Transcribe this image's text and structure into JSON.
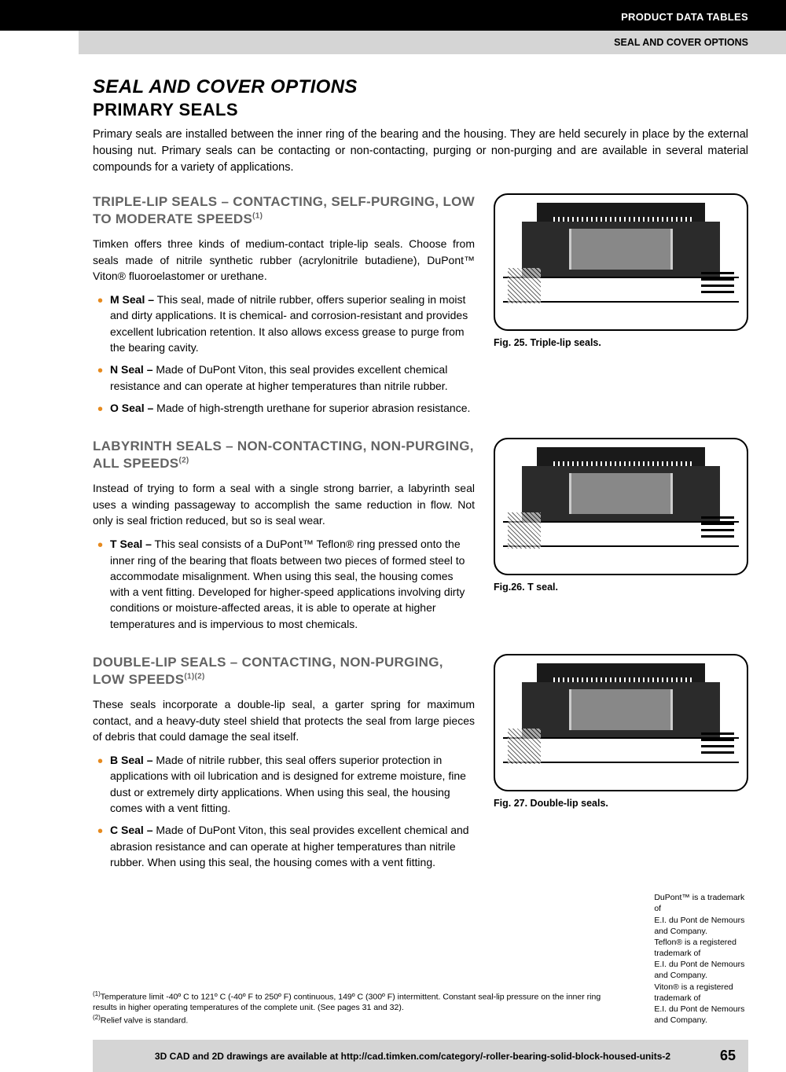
{
  "header": {
    "black": "PRODUCT DATA TABLES",
    "gray": "SEAL AND COVER OPTIONS"
  },
  "title": "SEAL AND COVER OPTIONS",
  "subtitle": "PRIMARY SEALS",
  "intro": "Primary seals are installed between the inner ring of the bearing and the housing. They are held securely in place by the external housing nut. Primary seals can be contacting or non-contacting, purging or non-purging and are available in several material compounds for a variety of applications.",
  "sections": [
    {
      "heading": "TRIPLE-LIP SEALS – CONTACTING, SELF-PURGING, LOW TO MODERATE SPEEDS",
      "sup": "(1)",
      "body": "Timken offers three kinds of medium-contact triple-lip seals. Choose from seals made of nitrile synthetic rubber (acrylonitrile butadiene), DuPont™ Viton® fluoroelastomer or urethane.",
      "items": [
        "<b>M Seal –</b> This seal, made of nitrile rubber, offers superior sealing in moist and dirty applications. It is chemical- and corrosion-resistant and provides excellent lubrication retention. It also allows excess grease to purge from the bearing cavity.",
        "<b>N Seal –</b> Made of DuPont Viton, this seal provides excellent chemical resistance and can operate at higher temperatures than nitrile rubber.",
        "<b>O Seal –</b> Made of high-strength urethane for superior abrasion resistance."
      ],
      "caption": "Fig. 25. Triple-lip seals."
    },
    {
      "heading": "LABYRINTH SEALS – NON-CONTACTING, NON-PURGING, ALL SPEEDS",
      "sup": "(2)",
      "body": "Instead of trying to form a seal with a single strong barrier, a labyrinth seal uses a winding passageway to accomplish the same reduction in flow. Not only is seal friction reduced, but so is seal wear.",
      "items": [
        "<b>T Seal –</b> This seal consists of a DuPont™ Teflon® ring pressed onto the inner ring of the bearing that floats between two pieces of formed steel to accommodate misalignment. When using this seal, the housing comes with a vent fitting. Developed for higher-speed applications involving dirty conditions or moisture-affected areas, it is able to operate at higher temperatures and is impervious to most chemicals."
      ],
      "caption": "Fig.26. T seal."
    },
    {
      "heading": "DOUBLE-LIP SEALS – CONTACTING, NON-PURGING, LOW SPEEDS",
      "sup": "(1)(2)",
      "body": "These seals incorporate a double-lip seal, a garter spring for maximum contact, and a heavy-duty steel shield that protects the seal from large pieces of debris that could damage the seal itself.",
      "items": [
        "<b>B Seal –</b> Made of nitrile rubber, this seal offers superior protection in applications with oil lubrication and is designed for extreme moisture, fine dust or extremely dirty applications. When using this seal, the housing comes with a vent fitting.",
        "<b>C Seal –</b> Made of DuPont Viton, this seal provides excellent chemical and abrasion resistance and can operate at higher temperatures than nitrile rubber. When using this seal, the housing comes with a vent fitting."
      ],
      "caption": "Fig. 27. Double-lip seals."
    }
  ],
  "footnotes": [
    "<sup>(1)</sup>Temperature limit -40º C to 121º C (-40º F to 250º F) continuous, 149º C (300º F) intermittent. Constant seal-lip pressure on the inner ring results in higher operating temperatures of the complete unit. (See pages 31 and 32).",
    "<sup>(2)</sup>Relief valve is standard."
  ],
  "trademark": "DuPont™ is a trademark of<br>E.I. du Pont de Nemours and Company.<br>Teflon® is a registered trademark of<br>E.I. du Pont de Nemours and Company.<br>Viton® is a registered trademark of<br>E.I. du Pont de Nemours and Company.",
  "footer": {
    "text": "3D CAD and 2D drawings are available at http://cad.timken.com/category/-roller-bearing-solid-block-housed-units-2",
    "page": "65"
  },
  "colors": {
    "bullet": "#e68a1e",
    "heading_gray": "#636363",
    "header_gray_bg": "#d5d5d5"
  }
}
